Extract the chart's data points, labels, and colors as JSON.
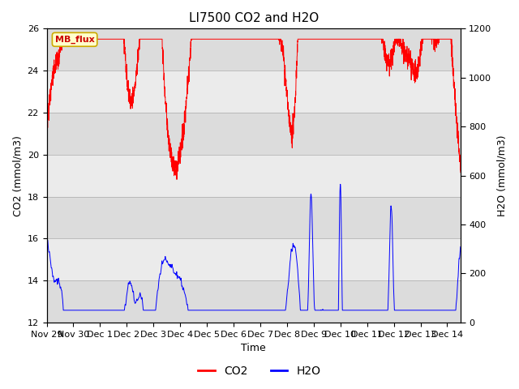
{
  "title": "LI7500 CO2 and H2O",
  "xlabel": "Time",
  "ylabel_left": "CO2 (mmol/m3)",
  "ylabel_right": "H2O (mmol/m3)",
  "ylim_left": [
    12,
    26
  ],
  "ylim_right": [
    0,
    1200
  ],
  "yticks_left": [
    12,
    14,
    16,
    18,
    20,
    22,
    24,
    26
  ],
  "yticks_right": [
    0,
    200,
    400,
    600,
    800,
    1000,
    1200
  ],
  "co2_color": "#FF0000",
  "h2o_color": "#0000FF",
  "legend_co2": "CO2",
  "legend_h2o": "H2O",
  "annotation_text": "MB_flux",
  "bg_color": "#ffffff",
  "plot_bg_color": "#ffffff",
  "band_color_dark": "#dcdcdc",
  "band_color_light": "#ebebeb",
  "seed": 42
}
